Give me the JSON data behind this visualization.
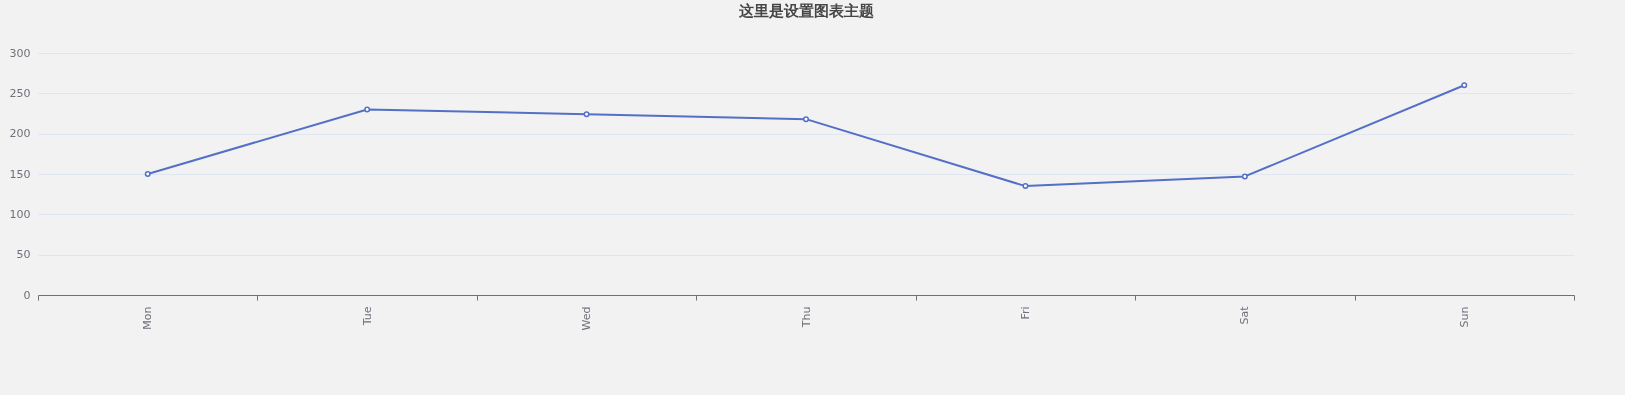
{
  "chart_data": {
    "type": "line",
    "title": "这里是设置图表主题",
    "categories": [
      "Mon",
      "Tue",
      "Wed",
      "Thu",
      "Fri",
      "Sat",
      "Sun"
    ],
    "series": [
      {
        "color": "#5470c6",
        "values": [
          150,
          230,
          224,
          218,
          135,
          147,
          260
        ]
      }
    ],
    "ylim": [
      0,
      300
    ],
    "yticks": [
      0,
      50,
      100,
      150,
      200,
      250,
      300
    ],
    "grid": "y",
    "marker": "circle",
    "line_style": "solid"
  }
}
